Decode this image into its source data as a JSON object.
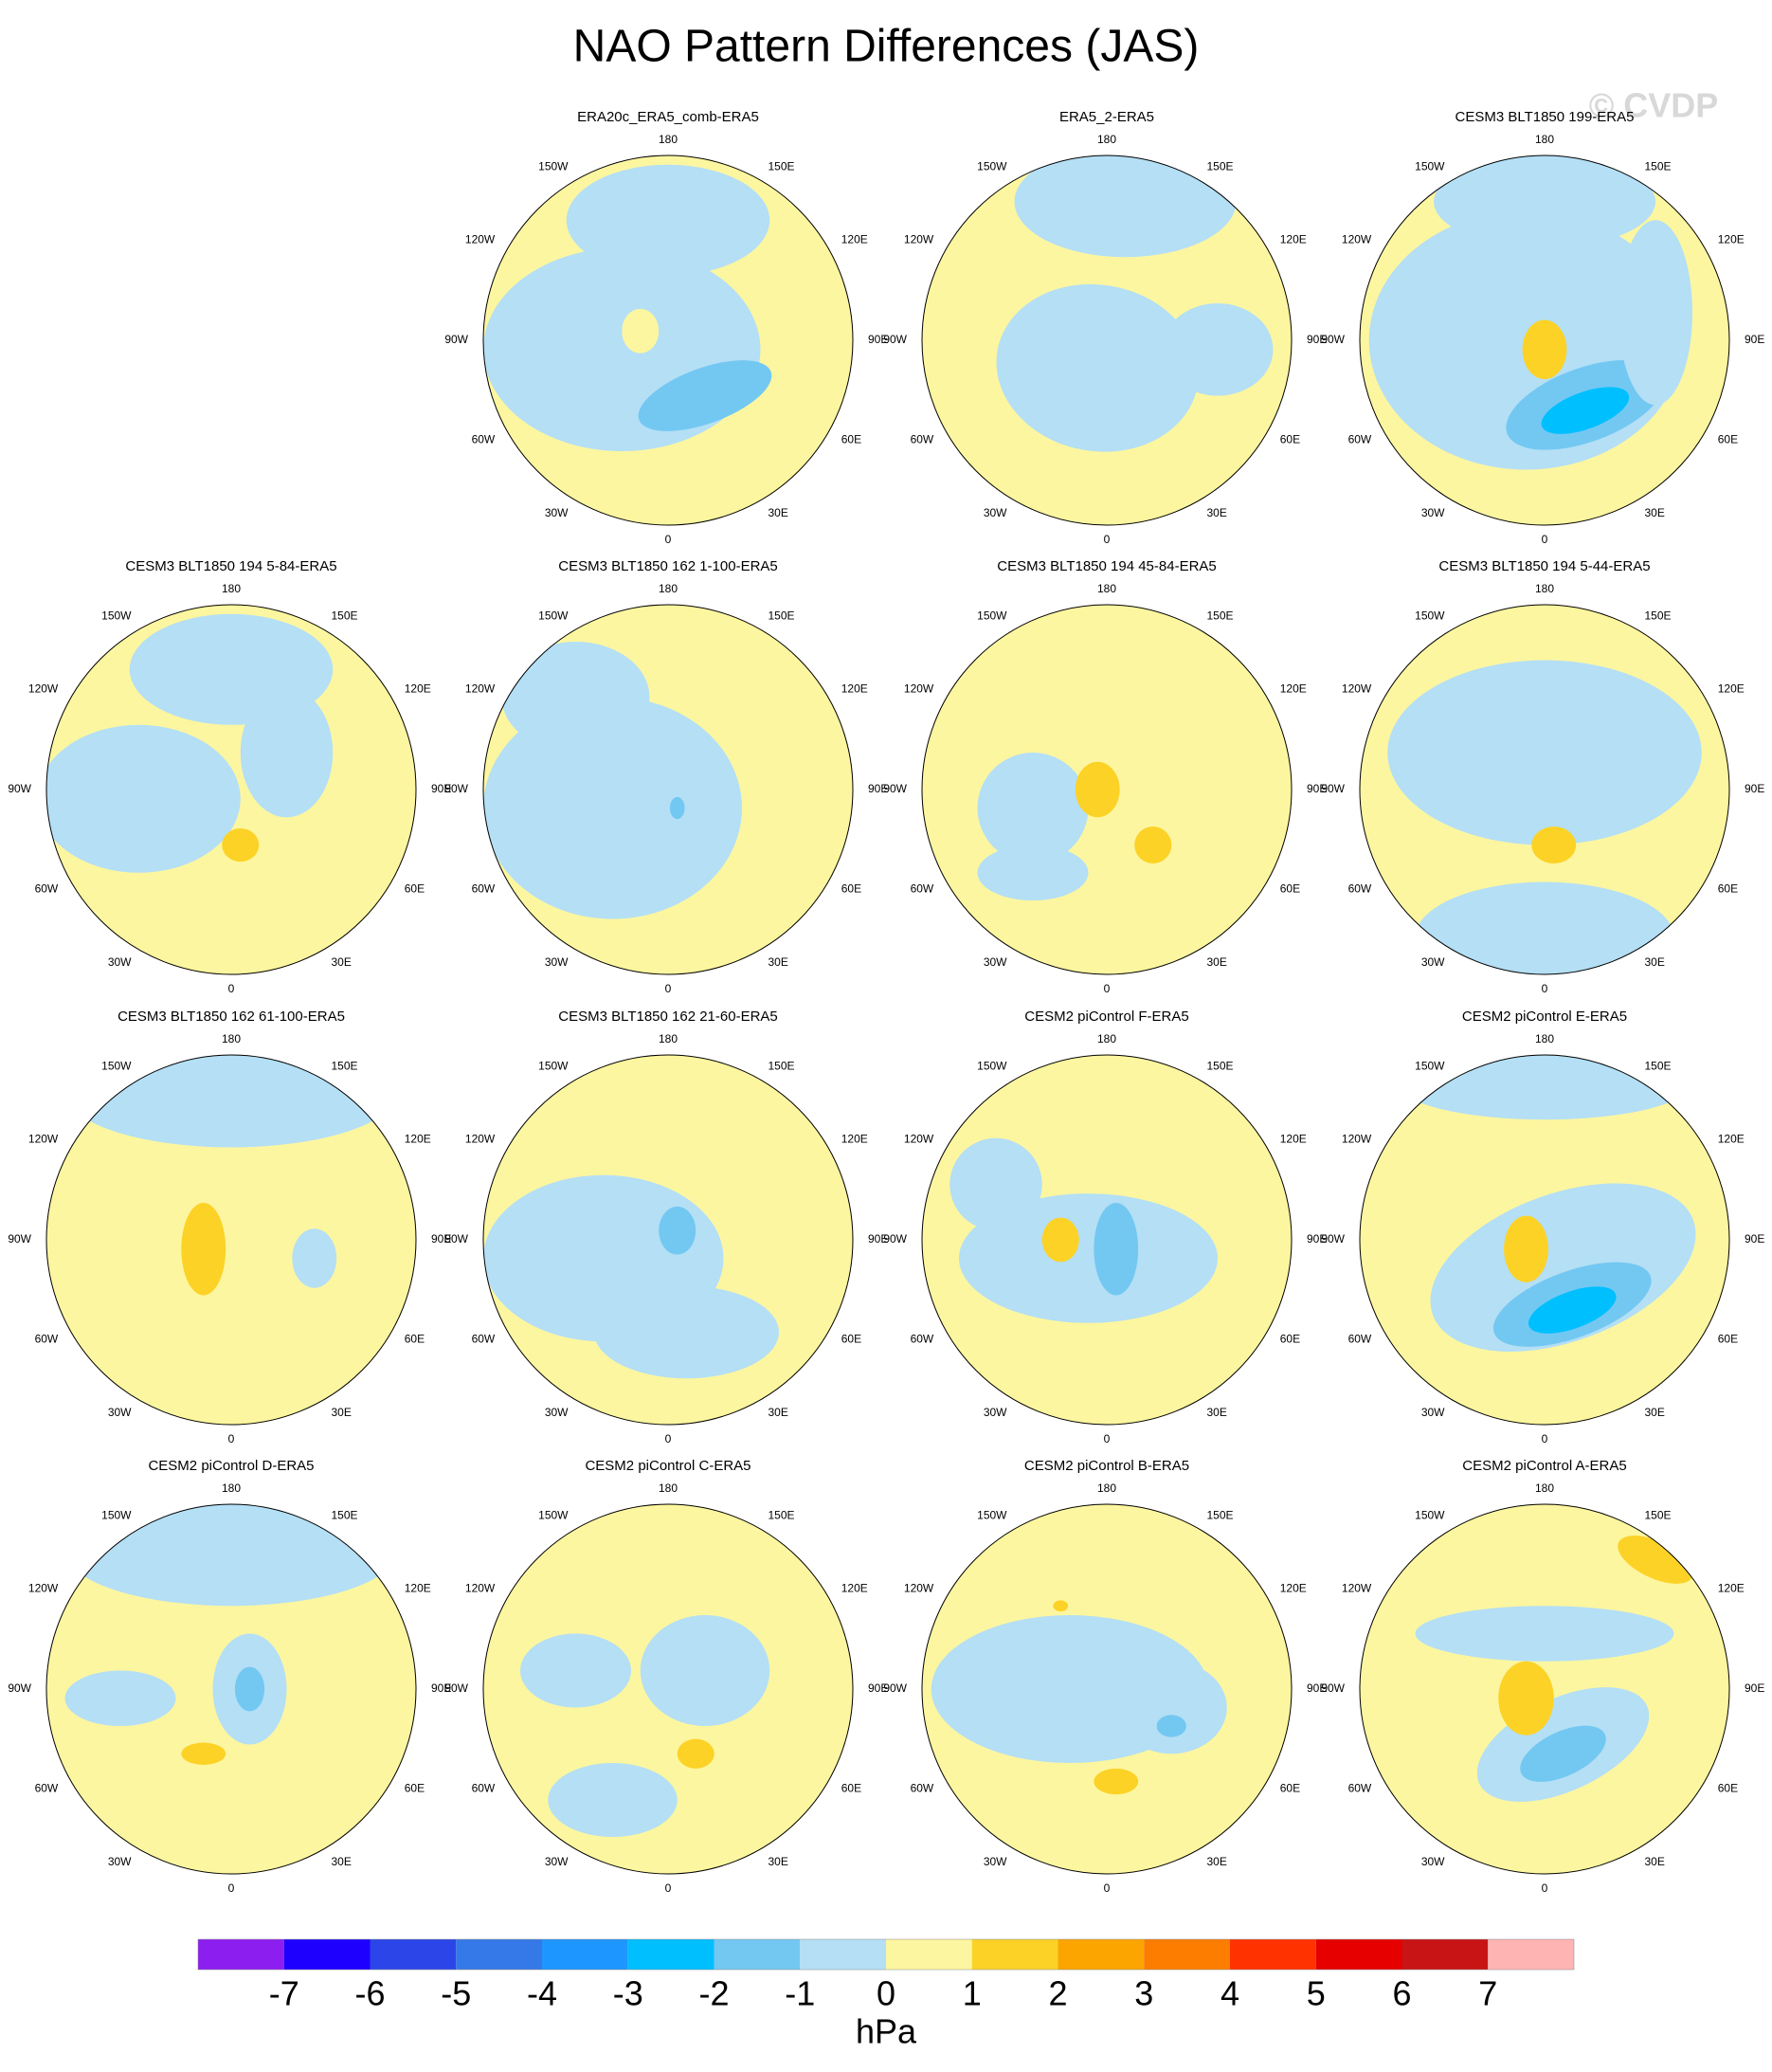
{
  "title": "NAO Pattern Differences (JAS)",
  "watermark": "© CVDP",
  "panels": [
    {
      "title": "ERA20c_ERA5_comb-ERA5"
    },
    {
      "title": "ERA5_2-ERA5"
    },
    {
      "title": "CESM3 BLT1850 199-ERA5"
    },
    {
      "title": "CESM3 BLT1850 194 5-84-ERA5"
    },
    {
      "title": "CESM3 BLT1850 162 1-100-ERA5"
    },
    {
      "title": "CESM3 BLT1850 194 45-84-ERA5"
    },
    {
      "title": "CESM3 BLT1850 194 5-44-ERA5"
    },
    {
      "title": "CESM3 BLT1850 162 61-100-ERA5"
    },
    {
      "title": "CESM3 BLT1850 162 21-60-ERA5"
    },
    {
      "title": "CESM2 piControl F-ERA5"
    },
    {
      "title": "CESM2 piControl E-ERA5"
    },
    {
      "title": "CESM2 piControl D-ERA5"
    },
    {
      "title": "CESM2 piControl C-ERA5"
    },
    {
      "title": "CESM2 piControl B-ERA5"
    },
    {
      "title": "CESM2 piControl A-ERA5"
    }
  ],
  "lon_labels": [
    "0",
    "30E",
    "60E",
    "90E",
    "120E",
    "150E",
    "180",
    "150W",
    "120W",
    "90W",
    "60W",
    "30W"
  ],
  "colorbar": {
    "colors": [
      "#8c1ef0",
      "#1e00ff",
      "#2b45e8",
      "#3578e8",
      "#1e96ff",
      "#00bfff",
      "#73c8f2",
      "#b4dff5",
      "#fdf6a0",
      "#fcd226",
      "#fca500",
      "#fc7d00",
      "#ff3200",
      "#e60000",
      "#c81414",
      "#ffb4b4"
    ],
    "ticks": [
      -7,
      -6,
      -5,
      -4,
      -3,
      -2,
      -1,
      0,
      1,
      2,
      3,
      4,
      5,
      6,
      7
    ],
    "units": "hPa"
  }
}
